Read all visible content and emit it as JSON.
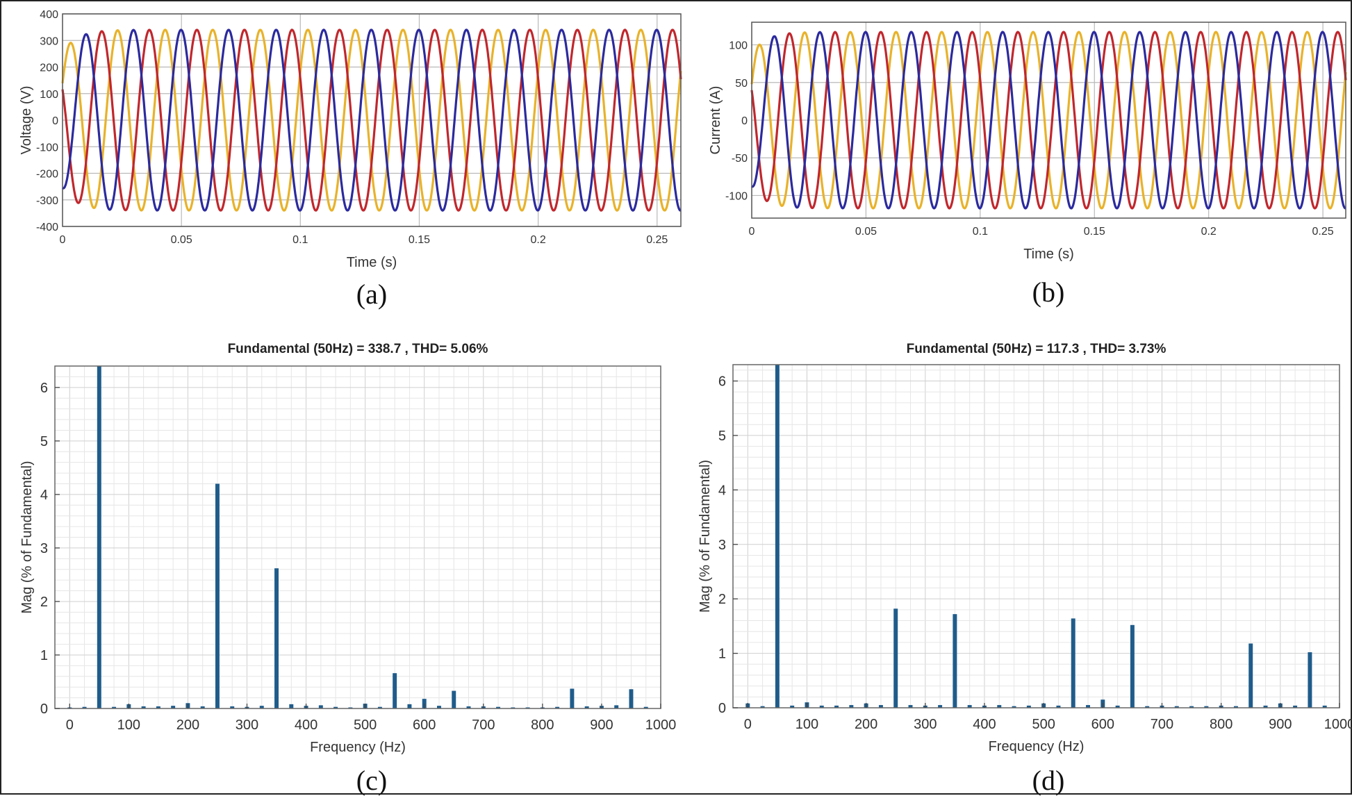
{
  "chart_data": [
    {
      "id": "a",
      "caption": "(a)",
      "type": "line",
      "title": "",
      "xlabel": "Time (s)",
      "ylabel": "Voltage (V)",
      "xlim": [
        0,
        0.26
      ],
      "ylim": [
        -400,
        400
      ],
      "xticks": [
        "0",
        "0.05",
        "0.1",
        "0.15",
        "0.2",
        "0.25"
      ],
      "yticks": [
        "400",
        "300",
        "200",
        "100",
        "0",
        "-100",
        "-200",
        "-300",
        "-400"
      ],
      "grid": true,
      "frequency_hz": 50,
      "amplitude_peak": 340,
      "colors": [
        "#c0272d",
        "#e8b22a",
        "#2b2a9e"
      ]
    },
    {
      "id": "b",
      "caption": "(b)",
      "type": "line",
      "title": "",
      "xlabel": "Time (s)",
      "ylabel": "Current (A)",
      "xlim": [
        0,
        0.26
      ],
      "ylim": [
        -130,
        130
      ],
      "xticks": [
        "0",
        "0.05",
        "0.1",
        "0.15",
        "0.2",
        "0.25"
      ],
      "yticks": [
        "100",
        "50",
        "0",
        "-50",
        "-100"
      ],
      "grid": true,
      "frequency_hz": 50,
      "amplitude_peak": 117,
      "colors": [
        "#c0272d",
        "#e8b22a",
        "#2b2a9e"
      ]
    },
    {
      "id": "c",
      "caption": "(c)",
      "type": "bar",
      "title": "Fundamental (50Hz) = 338.7 , THD= 5.06%",
      "xlabel": "Frequency (Hz)",
      "ylabel": "Mag (% of Fundamental)",
      "xlim": [
        -25,
        1000
      ],
      "ylim": [
        0,
        6.4
      ],
      "xticks": [
        "0",
        "100",
        "200",
        "300",
        "400",
        "500",
        "600",
        "700",
        "800",
        "900",
        "1000"
      ],
      "yticks": [
        "0",
        "1",
        "2",
        "3",
        "4",
        "5",
        "6"
      ],
      "grid": true,
      "color": "#1f5c8b",
      "bars": [
        [
          0,
          0.02
        ],
        [
          25,
          0.03
        ],
        [
          50,
          6.4
        ],
        [
          75,
          0.03
        ],
        [
          100,
          0.08
        ],
        [
          125,
          0.04
        ],
        [
          150,
          0.04
        ],
        [
          175,
          0.05
        ],
        [
          200,
          0.1
        ],
        [
          225,
          0.04
        ],
        [
          250,
          4.2
        ],
        [
          275,
          0.04
        ],
        [
          300,
          0.03
        ],
        [
          325,
          0.05
        ],
        [
          350,
          2.62
        ],
        [
          375,
          0.08
        ],
        [
          400,
          0.05
        ],
        [
          425,
          0.06
        ],
        [
          450,
          0.03
        ],
        [
          475,
          0.02
        ],
        [
          500,
          0.09
        ],
        [
          525,
          0.03
        ],
        [
          550,
          0.66
        ],
        [
          575,
          0.08
        ],
        [
          600,
          0.18
        ],
        [
          625,
          0.05
        ],
        [
          650,
          0.33
        ],
        [
          675,
          0.04
        ],
        [
          700,
          0.04
        ],
        [
          725,
          0.03
        ],
        [
          750,
          0.02
        ],
        [
          775,
          0.02
        ],
        [
          800,
          0.02
        ],
        [
          825,
          0.03
        ],
        [
          850,
          0.37
        ],
        [
          875,
          0.04
        ],
        [
          900,
          0.05
        ],
        [
          925,
          0.06
        ],
        [
          950,
          0.36
        ],
        [
          975,
          0.03
        ]
      ]
    },
    {
      "id": "d",
      "caption": "(d)",
      "type": "bar",
      "title": "Fundamental (50Hz) = 117.3 , THD= 3.73%",
      "xlabel": "Frequency (Hz)",
      "ylabel": "Mag (% of Fundamental)",
      "xlim": [
        -25,
        1000
      ],
      "ylim": [
        0,
        6.3
      ],
      "xticks": [
        "0",
        "100",
        "200",
        "300",
        "400",
        "500",
        "600",
        "700",
        "800",
        "900",
        "1000"
      ],
      "yticks": [
        "0",
        "1",
        "2",
        "3",
        "4",
        "5",
        "6"
      ],
      "grid": true,
      "color": "#1f5c8b",
      "bars": [
        [
          0,
          0.08
        ],
        [
          25,
          0.03
        ],
        [
          50,
          6.3
        ],
        [
          75,
          0.04
        ],
        [
          100,
          0.1
        ],
        [
          125,
          0.04
        ],
        [
          150,
          0.04
        ],
        [
          175,
          0.05
        ],
        [
          200,
          0.08
        ],
        [
          225,
          0.05
        ],
        [
          250,
          1.82
        ],
        [
          275,
          0.05
        ],
        [
          300,
          0.04
        ],
        [
          325,
          0.05
        ],
        [
          350,
          1.72
        ],
        [
          375,
          0.05
        ],
        [
          400,
          0.04
        ],
        [
          425,
          0.05
        ],
        [
          450,
          0.03
        ],
        [
          475,
          0.04
        ],
        [
          500,
          0.08
        ],
        [
          525,
          0.04
        ],
        [
          550,
          1.64
        ],
        [
          575,
          0.05
        ],
        [
          600,
          0.15
        ],
        [
          625,
          0.04
        ],
        [
          650,
          1.52
        ],
        [
          675,
          0.03
        ],
        [
          700,
          0.04
        ],
        [
          725,
          0.03
        ],
        [
          750,
          0.03
        ],
        [
          775,
          0.03
        ],
        [
          800,
          0.04
        ],
        [
          825,
          0.03
        ],
        [
          850,
          1.18
        ],
        [
          875,
          0.04
        ],
        [
          900,
          0.08
        ],
        [
          925,
          0.04
        ],
        [
          950,
          1.02
        ],
        [
          975,
          0.04
        ]
      ]
    }
  ]
}
